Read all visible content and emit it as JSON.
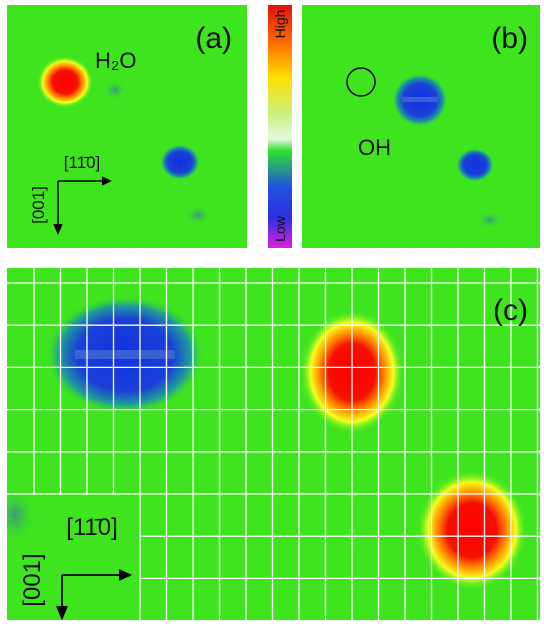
{
  "panels": {
    "a": {
      "label": "(a)",
      "molecule": "H₂O",
      "direction_horizontal": "[11̄0]",
      "direction_vertical": "[001]"
    },
    "b": {
      "label": "(b)",
      "molecule": "OH"
    },
    "c": {
      "label": "(c)",
      "direction_horizontal": "[11̄0]",
      "direction_vertical": "[001]"
    }
  },
  "colorbar": {
    "high": "High",
    "low": "Low"
  }
}
